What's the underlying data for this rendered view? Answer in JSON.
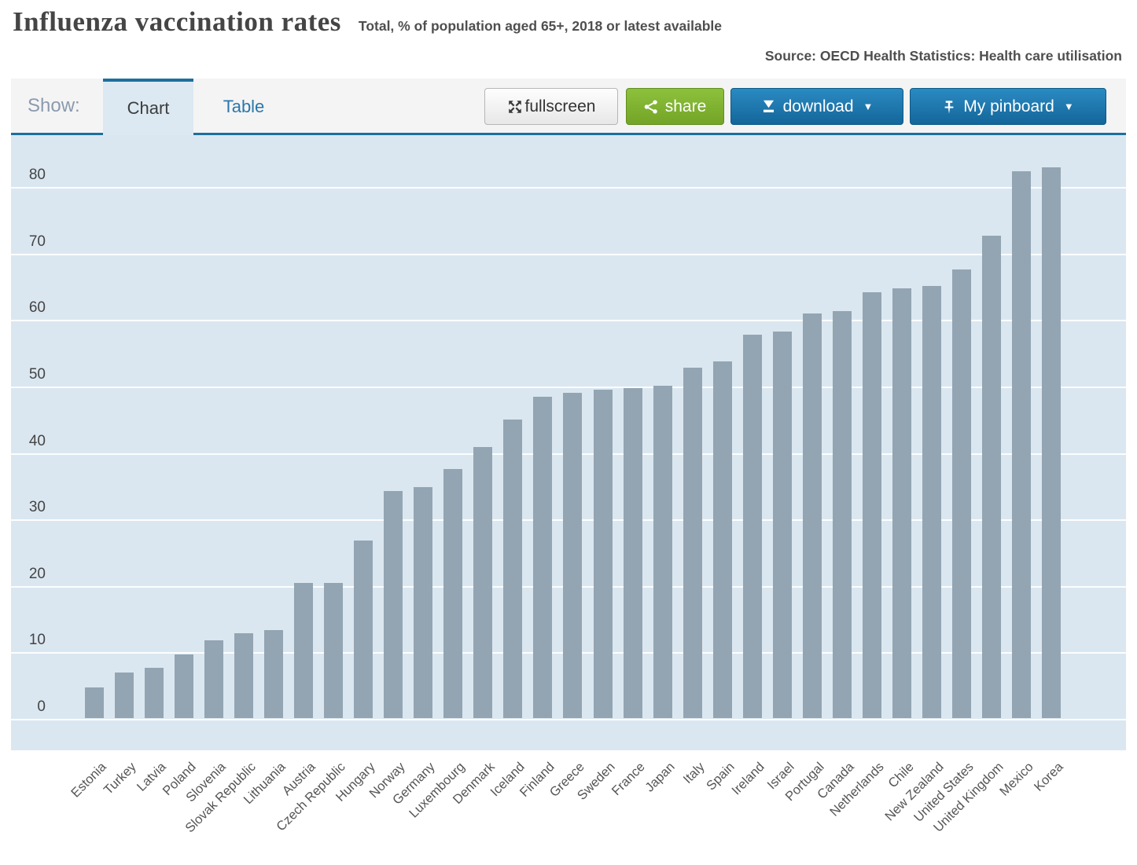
{
  "header": {
    "title": "Influenza vaccination rates",
    "subtitle": "Total, % of population aged 65+, 2018 or latest available",
    "source": "Source: OECD Health Statistics: Health care utilisation"
  },
  "toolbar": {
    "show_label": "Show:",
    "tabs": {
      "chart": "Chart",
      "table": "Table"
    },
    "active_tab": "Chart",
    "fullscreen_label": "fullscreen",
    "share_label": "share",
    "download_label": "download",
    "pinboard_label": "My pinboard",
    "caret": "▼",
    "icons": {
      "fullscreen": "expand-arrows-icon",
      "share": "share-nodes-icon",
      "download": "download-arrow-icon",
      "pinboard": "pushpin-icon",
      "menu_caret": "caret-down-icon"
    }
  },
  "colors": {
    "accent_blue": "#1b6f9e",
    "tab_link_blue": "#2a77aa",
    "button_blue_top": "#2b8ac2",
    "button_blue_bottom": "#13669a",
    "share_green_top": "#8cc13d",
    "share_green_bottom": "#74a426",
    "chart_background": "#dbe7f0",
    "bar_fill": "#93a5b2",
    "gridline": "#fbfdfe",
    "text_dark": "#454545"
  },
  "chart_data": {
    "type": "bar",
    "title": "Influenza vaccination rates",
    "subtitle": "Total, % of population aged 65+, 2018 or latest available",
    "source": "Source: OECD Health Statistics: Health care utilisation",
    "unit": "% of population aged 65+",
    "categories": [
      "Estonia",
      "Turkey",
      "Latvia",
      "Poland",
      "Slovenia",
      "Slovak Republic",
      "Lithuania",
      "Austria",
      "Czech Republic",
      "Hungary",
      "Norway",
      "Germany",
      "Luxembourg",
      "Denmark",
      "Iceland",
      "Finland",
      "Greece",
      "Sweden",
      "France",
      "Japan",
      "Italy",
      "Spain",
      "Ireland",
      "Israel",
      "Portugal",
      "Canada",
      "Netherlands",
      "Chile",
      "New Zealand",
      "United States",
      "United Kingdom",
      "Mexico",
      "Korea"
    ],
    "values": [
      4.6,
      6.9,
      7.6,
      9.6,
      11.7,
      12.8,
      13.2,
      20.3,
      20.3,
      26.7,
      34.2,
      34.8,
      37.5,
      40.8,
      44.9,
      48.3,
      48.9,
      49.4,
      49.6,
      50,
      52.7,
      53.6,
      57.7,
      58.1,
      60.9,
      61.2,
      64,
      64.6,
      65,
      67.5,
      72.5,
      82.3,
      82.8
    ],
    "y_ticks": [
      0,
      10,
      20,
      30,
      40,
      50,
      60,
      70,
      80
    ],
    "ylim": [
      0,
      87
    ],
    "xlabel": "",
    "ylabel": "",
    "grid": "horizontal",
    "legend": "none",
    "x_tick_rotation": 45
  }
}
